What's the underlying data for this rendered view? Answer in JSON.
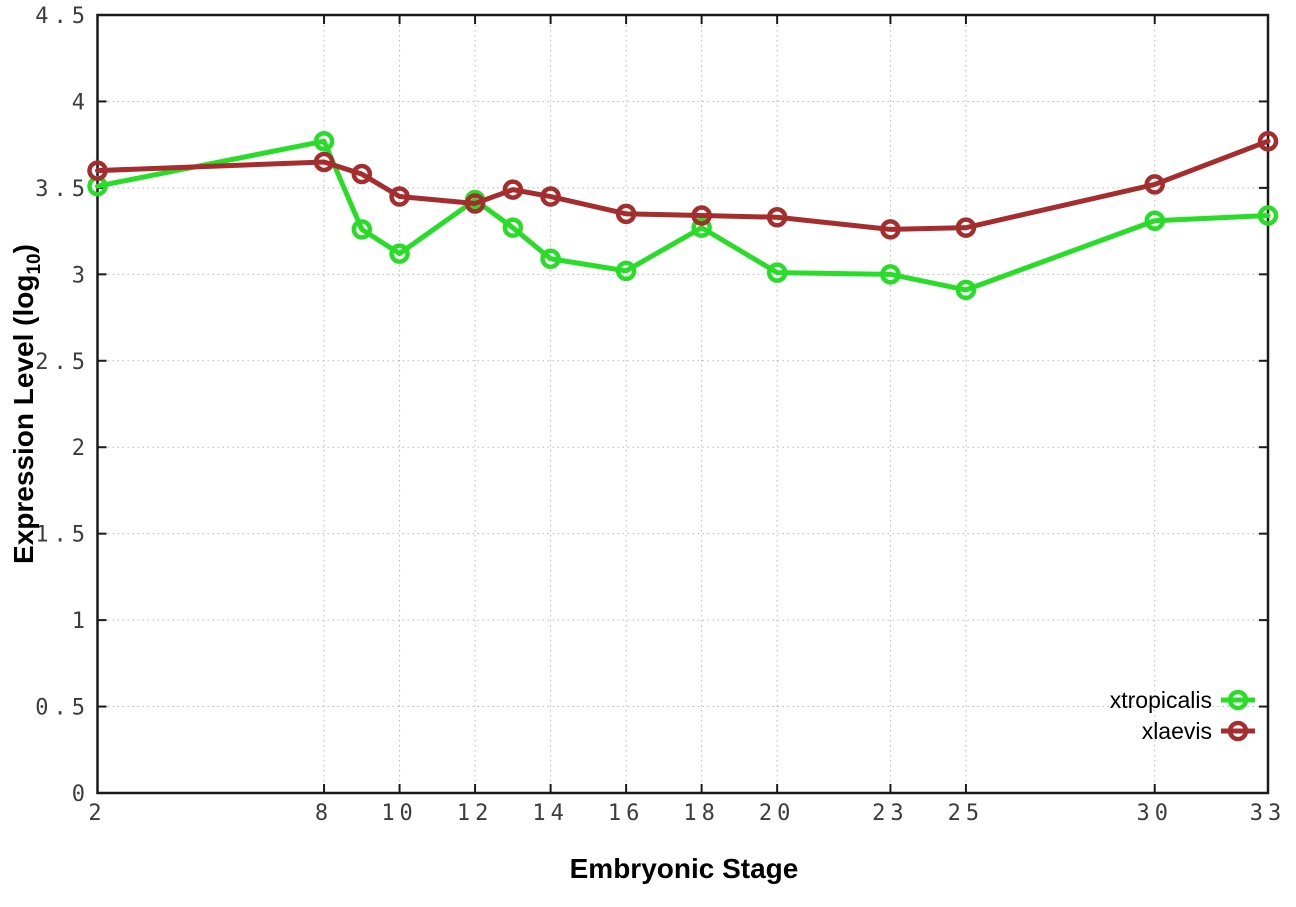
{
  "chart_data": {
    "type": "line",
    "title": "",
    "xlabel": "Embryonic Stage",
    "ylabel": "Expression Level (log10)",
    "ylabel_parts": {
      "main": "Expression Level (log",
      "sub": "10",
      "end": ")"
    },
    "x": [
      2,
      8,
      9,
      10,
      12,
      13,
      14,
      16,
      18,
      20,
      23,
      25,
      30,
      33
    ],
    "xticks": [
      2,
      8,
      10,
      12,
      14,
      16,
      18,
      20,
      23,
      25,
      30,
      33
    ],
    "yticks": [
      0,
      0.5,
      1,
      1.5,
      2,
      2.5,
      3,
      3.5,
      4,
      4.5
    ],
    "xlim": [
      2,
      33
    ],
    "ylim": [
      0,
      4.5
    ],
    "grid": true,
    "legend_position": "bottom-right-inside",
    "series": [
      {
        "name": "xtropicalis",
        "color": "#28dd28",
        "values": [
          3.51,
          3.77,
          3.26,
          3.12,
          3.43,
          3.27,
          3.09,
          3.02,
          3.27,
          3.01,
          3.0,
          2.91,
          3.31,
          3.34
        ]
      },
      {
        "name": "xlaevis",
        "color": "#a52d2d",
        "values": [
          3.6,
          3.65,
          3.58,
          3.45,
          3.41,
          3.49,
          3.45,
          3.35,
          3.34,
          3.33,
          3.26,
          3.27,
          3.52,
          3.77
        ]
      }
    ]
  },
  "colors": {
    "background": "#ffffff",
    "plot_border": "#1a1a1a",
    "grid": "#b9b9b9",
    "tick_label": "#3c3c3c",
    "axis_title": "#000000"
  }
}
